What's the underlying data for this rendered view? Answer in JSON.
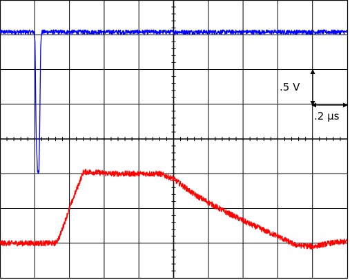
{
  "chart_data": {
    "type": "line",
    "title": "",
    "xlabel": "",
    "ylabel": "",
    "grid": true,
    "grid_divisions": {
      "x": 10,
      "y": 8
    },
    "x_units": "div",
    "y_units": "div",
    "xlim": [
      0,
      10
    ],
    "ylim": [
      -4,
      4
    ],
    "scale_annotations": {
      "volts_per_div": ".5  V",
      "time_per_div": ".2  µs"
    },
    "series": [
      {
        "color": "#0000ff",
        "noise": 0.06,
        "points": [
          [
            0,
            3.08
          ],
          [
            0.98,
            3.08
          ],
          [
            1.01,
            2.8
          ],
          [
            1.04,
            0.1
          ],
          [
            1.08,
            -0.95
          ],
          [
            1.12,
            -0.95
          ],
          [
            1.14,
            0.1
          ],
          [
            1.17,
            2.6
          ],
          [
            1.2,
            3.08
          ],
          [
            10,
            3.08
          ]
        ]
      },
      {
        "color": "#ff0000",
        "noise": 0.08,
        "points": [
          [
            0,
            -3.0
          ],
          [
            1.6,
            -3.0
          ],
          [
            1.72,
            -2.8
          ],
          [
            2.0,
            -2.0
          ],
          [
            2.4,
            -0.95
          ],
          [
            2.6,
            -0.95
          ],
          [
            3.2,
            -1.0
          ],
          [
            4.6,
            -1.0
          ],
          [
            5.0,
            -1.15
          ],
          [
            5.6,
            -1.6
          ],
          [
            6.4,
            -2.05
          ],
          [
            7.2,
            -2.45
          ],
          [
            8.0,
            -2.8
          ],
          [
            8.5,
            -3.05
          ],
          [
            9.0,
            -3.1
          ],
          [
            9.5,
            -3.0
          ],
          [
            10,
            -2.95
          ]
        ]
      }
    ]
  }
}
